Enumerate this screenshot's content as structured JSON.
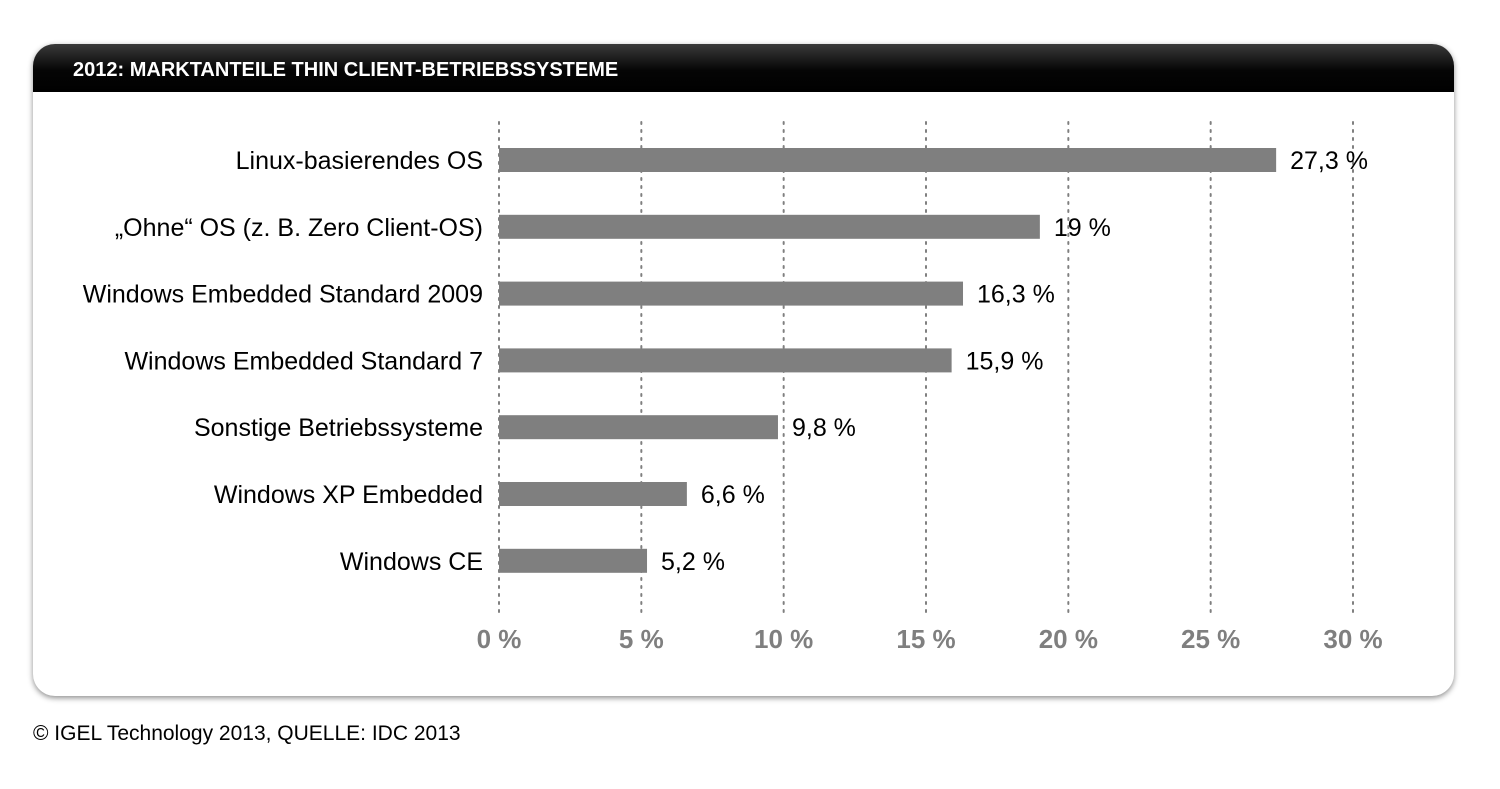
{
  "chart_data": {
    "type": "bar",
    "orientation": "horizontal",
    "title": "2012: MARKTANTEILE THIN CLIENT-BETRIEBSSYSTEME",
    "categories": [
      "Linux-basierendes OS",
      "„Ohne“ OS (z. B. Zero Client-OS)",
      "Windows Embedded Standard 2009",
      "Windows Embedded Standard 7",
      "Sonstige Betriebssysteme",
      "Windows XP Embedded",
      "Windows CE"
    ],
    "values": [
      27.3,
      19,
      16.3,
      15.9,
      9.8,
      6.6,
      5.2
    ],
    "value_labels": [
      "27,3 %",
      "19 %",
      "16,3 %",
      "15,9 %",
      "9,8 %",
      "6,6 %",
      "5,2 %"
    ],
    "xlim": [
      0,
      30
    ],
    "x_ticks": [
      0,
      5,
      10,
      15,
      20,
      25,
      30
    ],
    "x_tick_labels": [
      "0 %",
      "5 %",
      "10 %",
      "15 %",
      "20 %",
      "25 %",
      "30 %"
    ],
    "grid": "vertical-dotted",
    "bar_color": "#7f7f7f",
    "tick_label_color": "#7f7f7f",
    "gridline_color": "#808080"
  },
  "footer": {
    "source": "© IGEL Technology 2013, QUELLE: IDC 2013"
  }
}
